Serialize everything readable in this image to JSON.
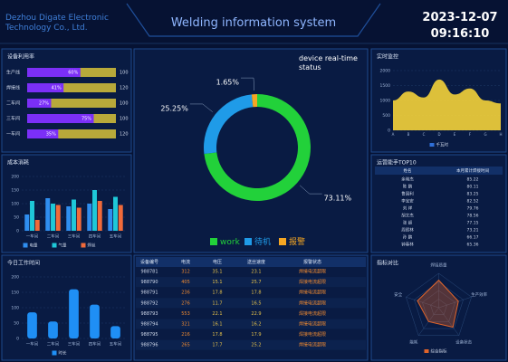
{
  "header": {
    "company": "Dezhou Digate Electronic Technology Co., Ltd.",
    "title": "Welding information system",
    "date": "2023-12-07",
    "time": "09:16:10"
  },
  "chart_data": [
    {
      "type": "hbar-stack",
      "title": "设备利用率",
      "categories": [
        "生产线",
        "焊接线",
        "二车间",
        "三车间",
        "一车间"
      ],
      "values": [
        60,
        41,
        27,
        75,
        35
      ],
      "value_labels": [
        "60%",
        "41%",
        "27%",
        "75%",
        "35%"
      ],
      "targets": [
        100,
        120,
        100,
        100,
        120
      ],
      "xlim": [
        0,
        100
      ],
      "colors": [
        "#7b2ff7",
        "#b8a93a"
      ]
    },
    {
      "type": "bar",
      "title": "成本消耗",
      "categories": [
        "一车间",
        "二车间",
        "三车间",
        "四车间",
        "五车间"
      ],
      "series": [
        {
          "name": "电量",
          "color": "#2f8ef0",
          "values": [
            60,
            120,
            90,
            100,
            80
          ]
        },
        {
          "name": "气量",
          "color": "#1ec8d8",
          "values": [
            110,
            100,
            115,
            150,
            125
          ]
        },
        {
          "name": "焊丝",
          "color": "#f06a3a",
          "values": [
            40,
            95,
            85,
            110,
            95
          ]
        }
      ],
      "ylim": [
        0,
        200
      ],
      "yticks": [
        0,
        50,
        100,
        150,
        200
      ],
      "grid": true
    },
    {
      "type": "bar",
      "title": "今日工作时间",
      "categories": [
        "一车间",
        "二车间",
        "三车间",
        "四车间",
        "五车间"
      ],
      "series": [
        {
          "name": "时长",
          "color": "#1f8ff5",
          "values": [
            85,
            55,
            160,
            110,
            40
          ]
        }
      ],
      "ylim": [
        0,
        200
      ],
      "yticks": [
        0,
        50,
        100,
        150,
        200
      ],
      "grid": true
    },
    {
      "type": "pie",
      "title": "device real-time status",
      "categories": [
        "work",
        "待机",
        "报警"
      ],
      "values": [
        73.11,
        25.25,
        1.65
      ],
      "value_labels": [
        "73.11%",
        "25.25%",
        "1.65%"
      ],
      "colors": [
        "#22d13a",
        "#1f9be8",
        "#f5a623"
      ]
    },
    {
      "type": "area",
      "title": "实时监控",
      "categories": [
        "A",
        "B",
        "C",
        "D",
        "E",
        "F",
        "G",
        "H"
      ],
      "series": [
        {
          "name": "千瓦时",
          "color": "#f5d33a",
          "values": [
            1000,
            1300,
            1100,
            1700,
            1200,
            1400,
            1000,
            900
          ]
        }
      ],
      "ylim": [
        0,
        2000
      ],
      "yticks": [
        0,
        500,
        1000,
        1500,
        2000
      ],
      "grid": true
    },
    {
      "type": "radar",
      "title": "指标对比",
      "categories": [
        "焊接质量",
        "生产效率",
        "设备状态",
        "能耗",
        "安全"
      ],
      "series": [
        {
          "name": "综合指标",
          "color": "#e0642a",
          "values": [
            80,
            60,
            70,
            50,
            65
          ]
        }
      ],
      "rlim": [
        0,
        100
      ]
    }
  ],
  "tables": [
    {
      "columns": [
        "设备编号",
        "电流",
        "电压",
        "送丝速度",
        "报警状态"
      ],
      "rows": [
        [
          "988781",
          "312",
          "35.1",
          "23.1",
          "焊接电流超限"
        ],
        [
          "988790",
          "405",
          "15.1",
          "25.7",
          "焊接电流超限"
        ],
        [
          "988791",
          "236",
          "17.8",
          "17.8",
          "焊接电流超限"
        ],
        [
          "988792",
          "276",
          "11.7",
          "16.5",
          "焊接电流超限"
        ],
        [
          "988793",
          "553",
          "22.1",
          "22.9",
          "焊接电流超限"
        ],
        [
          "988794",
          "321",
          "16.1",
          "16.2",
          "焊接电流超限"
        ],
        [
          "988795",
          "216",
          "17.8",
          "17.9",
          "焊接电流超限"
        ],
        [
          "988796",
          "265",
          "17.7",
          "25.2",
          "焊接电流超限"
        ]
      ]
    },
    {
      "title": "运营能手TOP10",
      "columns": [
        "姓名",
        "本月累计焊接时间"
      ],
      "rows": [
        [
          "余晓杰",
          "85.22"
        ],
        [
          "陈 鹏",
          "80.11"
        ],
        [
          "鲁国利",
          "83.25"
        ],
        [
          "李宝安",
          "82.52"
        ],
        [
          "刘 祥",
          "79.76"
        ],
        [
          "胡文杰",
          "78.56"
        ],
        [
          "张 超",
          "77.15"
        ],
        [
          "周照林",
          "73.21"
        ],
        [
          "孙 鹏",
          "66.17"
        ],
        [
          "钟春林",
          "65.36"
        ]
      ]
    }
  ]
}
